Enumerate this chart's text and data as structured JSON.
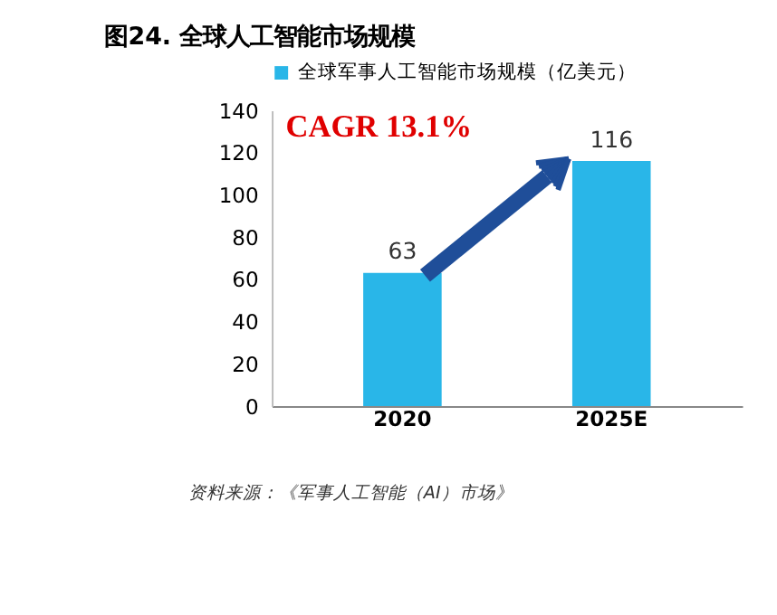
{
  "chart_data": {
    "type": "bar",
    "title": "图24. 全球人工智能市场规模",
    "categories": [
      "2020",
      "2025E"
    ],
    "series": [
      {
        "name": "全球军事人工智能市场规模（亿美元）",
        "color": "#29b6e8",
        "values": [
          63,
          116
        ]
      }
    ],
    "ylim": [
      0,
      140
    ],
    "yticks": [
      0,
      20,
      40,
      60,
      80,
      100,
      120,
      140
    ],
    "grid": false,
    "legend": "top",
    "data_labels": true,
    "annotations": [
      "CAGR 13.1%",
      "资料来源：《军事人工智能（AI）市场》"
    ]
  }
}
